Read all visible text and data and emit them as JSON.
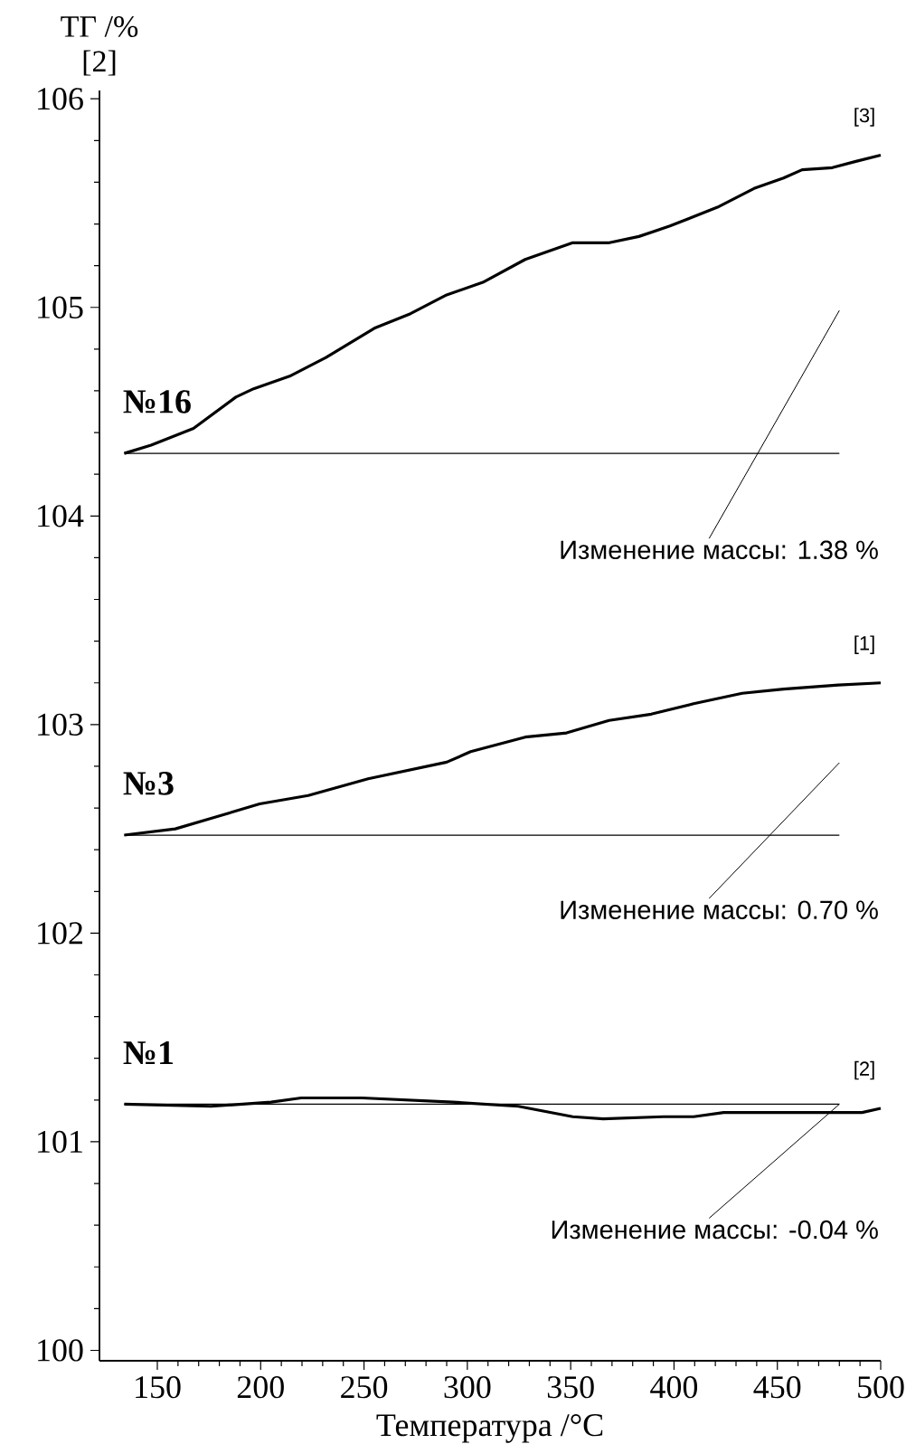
{
  "chart_data": {
    "type": "line",
    "xlabel": "Температура /°С",
    "ylabel": "ТГ /%",
    "xlim": [
      122,
      500
    ],
    "ylim": [
      99.95,
      106.04
    ],
    "xticks": [
      150,
      200,
      250,
      300,
      350,
      400,
      450,
      500
    ],
    "yticks": [
      100,
      101,
      102,
      103,
      104,
      105,
      106
    ],
    "series": [
      {
        "name": "№16",
        "color": "#000000",
        "x": [
          134,
          147,
          167.5,
          188,
          196.6,
          214,
          231.6,
          255,
          272.5,
          290,
          307.5,
          328,
          351,
          368.7,
          383,
          398,
          421,
          438.7,
          453,
          462,
          476.6,
          488,
          500
        ],
        "values": [
          104.3,
          104.34,
          104.42,
          104.57,
          104.61,
          104.67,
          104.76,
          104.9,
          104.97,
          105.06,
          105.12,
          105.23,
          105.31,
          105.31,
          105.34,
          105.39,
          105.48,
          105.57,
          105.62,
          105.66,
          105.67,
          105.7,
          105.73
        ]
      },
      {
        "color": "#000000",
        "x": [
          134,
          480
        ],
        "values": [
          104.3,
          104.3
        ]
      },
      {
        "name": "№3",
        "color": "#000000",
        "x": [
          134,
          158.7,
          176,
          199.5,
          223,
          252,
          290,
          301.6,
          328,
          348,
          368.6,
          389,
          409.5,
          433,
          453,
          479.5,
          500
        ],
        "values": [
          102.47,
          102.5,
          102.55,
          102.62,
          102.66,
          102.74,
          102.82,
          102.87,
          102.94,
          102.96,
          103.02,
          103.05,
          103.1,
          103.15,
          103.17,
          103.19,
          103.2
        ]
      },
      {
        "color": "#000000",
        "x": [
          134,
          480
        ],
        "values": [
          102.47,
          102.47
        ]
      },
      {
        "name": "№1",
        "color": "#000000",
        "x": [
          134,
          176,
          205,
          219.6,
          249,
          293,
          324.7,
          351,
          365.7,
          394.9,
          409.5,
          424,
          453,
          479.5,
          491,
          500
        ],
        "values": [
          101.18,
          101.17,
          101.19,
          101.21,
          101.21,
          101.19,
          101.17,
          101.12,
          101.11,
          101.12,
          101.12,
          101.14,
          101.14,
          101.14,
          101.14,
          101.16
        ]
      },
      {
        "color": "#000000",
        "x": [
          134,
          480
        ],
        "values": [
          101.18,
          101.18
        ]
      }
    ],
    "legend": "left",
    "annotations": [
      "[2]",
      "[3]",
      "[1]",
      "[2]",
      "Изменение массы: 1.38 %",
      "Изменение массы: 0.70 %",
      {
        "text": "Изменение массы: -0.04 %",
        "x": 480,
        "y": 101.18
      }
    ]
  }
}
